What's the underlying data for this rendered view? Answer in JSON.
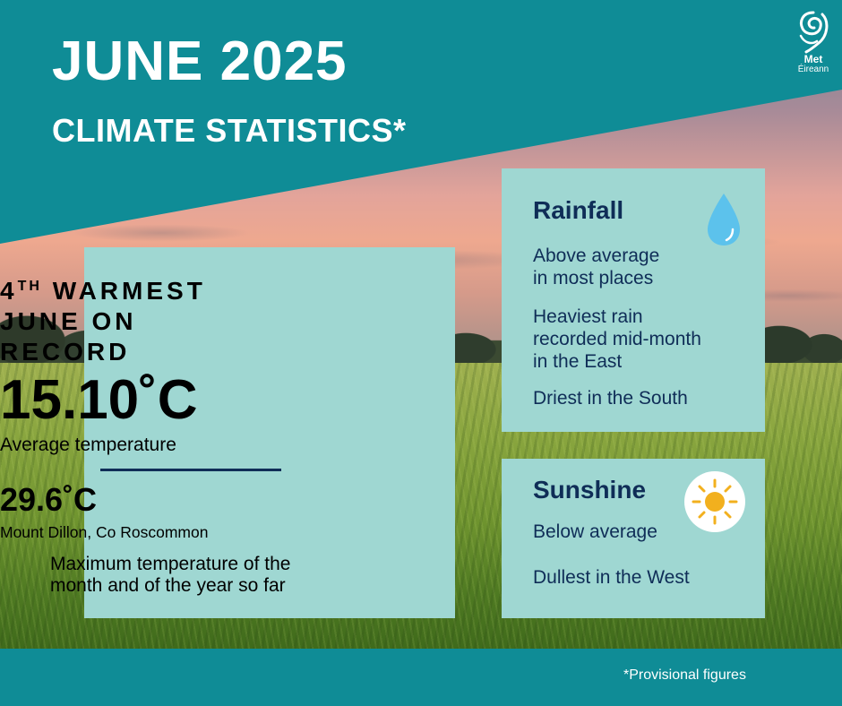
{
  "header": {
    "title": "JUNE 2025",
    "subtitle": "CLIMATE STATISTICS*",
    "logo_line1": "Met",
    "logo_line2": "Éireann",
    "logo_icon": "met-eireann-swirl-icon"
  },
  "temperature": {
    "rank_number": "4",
    "rank_suffix": "TH",
    "rank_rest": "WARMEST",
    "rank_line2": "JUNE ON",
    "rank_line3": "RECORD",
    "average_value": "15.10˚C",
    "average_label": "Average temperature",
    "max_value": "29.6˚C",
    "max_station": "Mount Dillon, Co Roscommon",
    "max_description_line1": "Maximum temperature of the",
    "max_description_line2": "month and of the year so far"
  },
  "rainfall": {
    "title": "Rainfall",
    "icon": "raindrop-icon",
    "items": [
      [
        "Above average",
        "in most places"
      ],
      [
        "Heaviest rain",
        "recorded mid-month",
        "in the East"
      ],
      [
        "Driest in the South"
      ]
    ]
  },
  "sunshine": {
    "title": "Sunshine",
    "icon": "sun-icon",
    "items": [
      "Below average",
      "Dullest in the West"
    ]
  },
  "footer": {
    "note": "*Provisional figures"
  },
  "colors": {
    "teal": "#0f8c96",
    "panel": "#9fd7d2",
    "navy": "#0f2d57",
    "sun": "#f2b01e",
    "drop": "#5cc2ec"
  }
}
